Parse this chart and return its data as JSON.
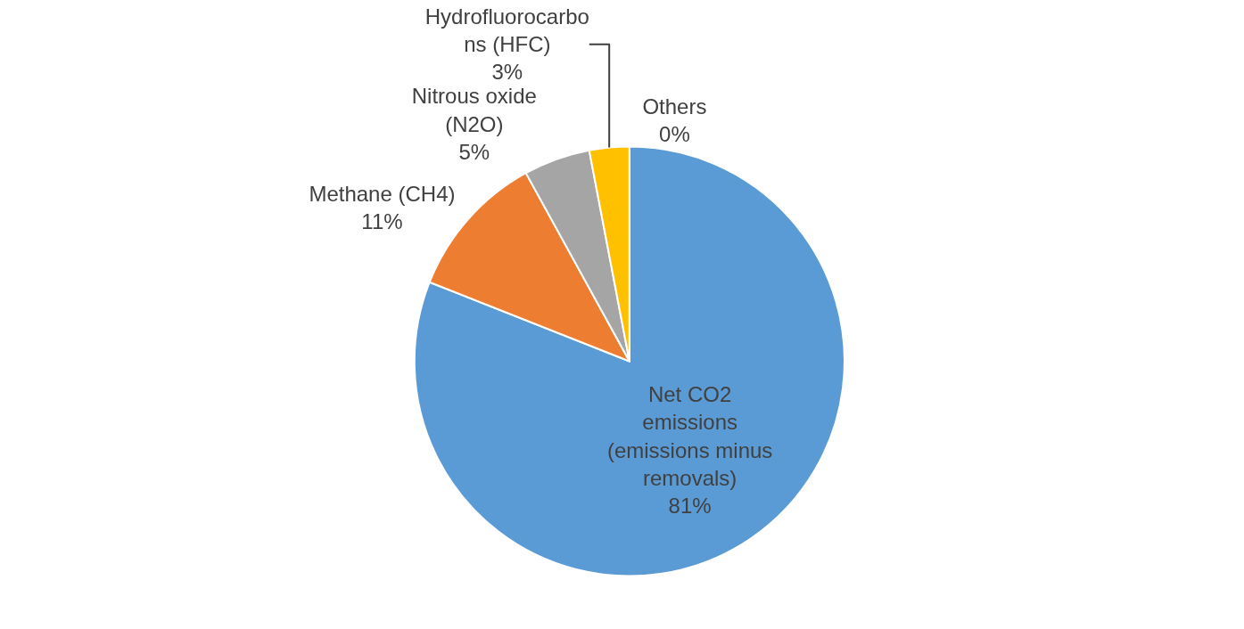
{
  "chart_data": {
    "type": "pie",
    "categories": [
      "Net CO2 emissions (emissions minus removals)",
      "Methane (CH4)",
      "Nitrous oxide (N2O)",
      "Hydrofluorocarbons (HFC)",
      "Others"
    ],
    "values": [
      81,
      11,
      5,
      3,
      0
    ],
    "colors": [
      "#5b9bd5",
      "#ed7d31",
      "#a5a5a5",
      "#ffc000",
      "#4472c4"
    ],
    "value_labels": [
      "81%",
      "11%",
      "5%",
      "3%",
      "0%"
    ],
    "legend": false
  }
}
